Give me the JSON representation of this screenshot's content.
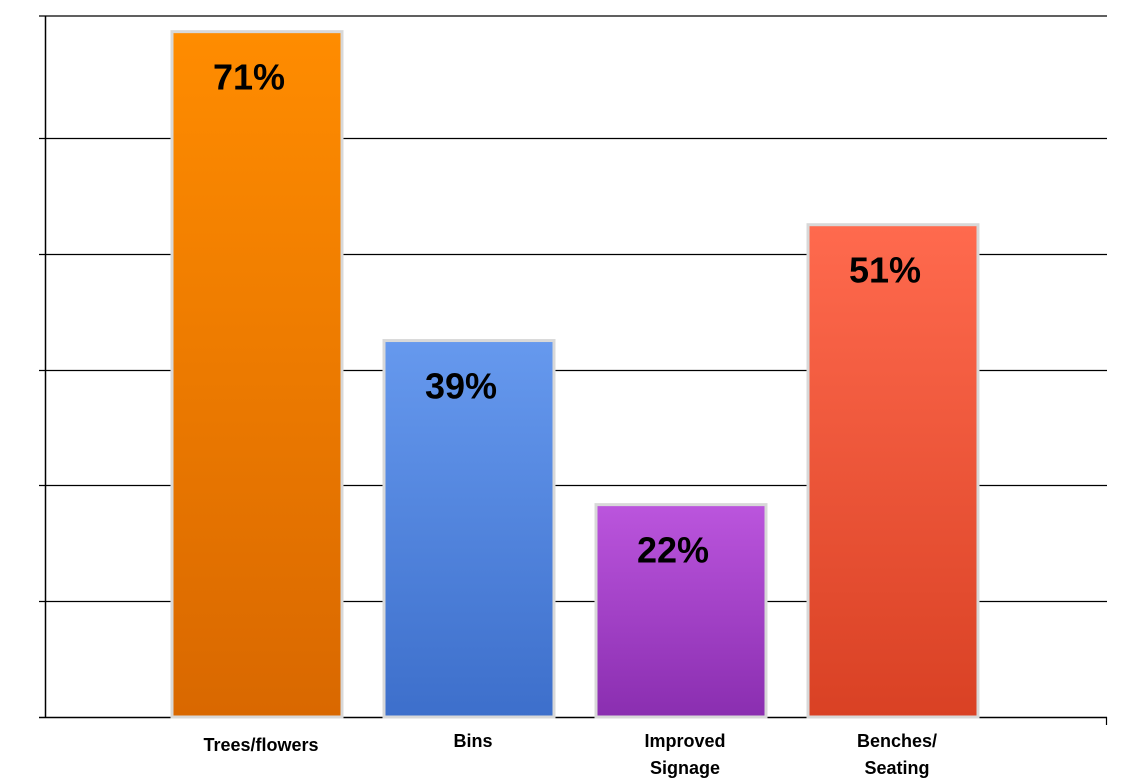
{
  "chart_data": {
    "type": "bar",
    "title": "",
    "xlabel": "",
    "ylabel": "",
    "categories": [
      "Trees/flowers",
      "Bins",
      "Improved Signage",
      "Benches/ Seating"
    ],
    "values": [
      71,
      39,
      22,
      51
    ],
    "data_labels": [
      "71%",
      "39%",
      "22%",
      "51%"
    ],
    "unit": "%",
    "ylim": [
      0,
      72
    ],
    "y_gridlines": [
      12,
      24,
      36,
      48,
      60
    ],
    "grid": true,
    "legend": "none",
    "colors": {
      "Trees/flowers": [
        "#ff8c00",
        "#d96800"
      ],
      "Bins": [
        "#6699ee",
        "#3d6fcb"
      ],
      "Improved Signage": [
        "#bb55dd",
        "#8a2eb0"
      ],
      "Benches/ Seating": [
        "#ff6a4e",
        "#d94124"
      ]
    },
    "bar_border_color": "#d8d8d8",
    "gridline_color": "#000000",
    "axis_color": "#000000"
  }
}
